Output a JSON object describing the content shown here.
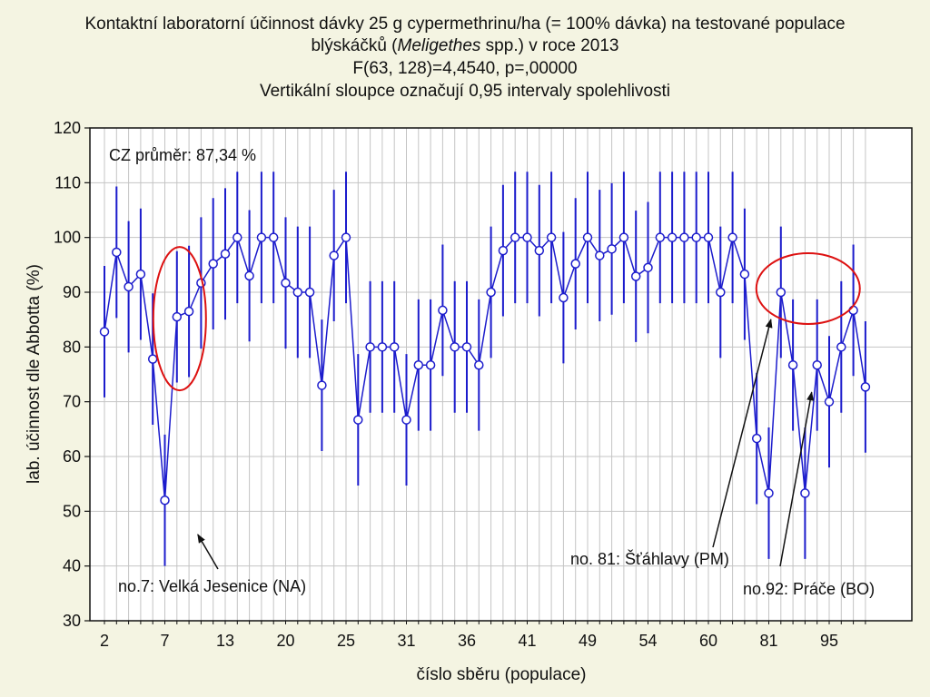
{
  "chart_data": {
    "type": "line",
    "title_lines": [
      "Kontaktní laboratorní účinnost dávky 25 g cypermethrinu/ha (= 100% dávka) na testované populace",
      "blýskáčků (",
      "Meligethes",
      " spp.) v roce 2013",
      "F(63, 128)=4,4540, p=,00000",
      "Vertikální sloupce označují 0,95 intervaly spolehlivosti"
    ],
    "xlabel": "číslo sběru (populace)",
    "ylabel": "lab. účinnost dle Abbotta (%)",
    "ylim": [
      30,
      120
    ],
    "yticks": [
      30,
      40,
      50,
      60,
      70,
      80,
      90,
      100,
      110,
      120
    ],
    "xtick_labels": [
      "2",
      "7",
      "13",
      "20",
      "25",
      "31",
      "36",
      "41",
      "49",
      "54",
      "60",
      "81",
      "95"
    ],
    "xtick_every": 5,
    "grid": true,
    "ci_halfwidth": 12,
    "series": [
      {
        "values": [
          82.8,
          97.3,
          91.0,
          93.3,
          77.8,
          52.0,
          85.5,
          86.5,
          91.7,
          95.2,
          97.0,
          100.0,
          93.0,
          100.0,
          100.0,
          91.7,
          90.0,
          90.0,
          73.0,
          96.7,
          100.0,
          66.7,
          80.0,
          80.0,
          80.0,
          66.7,
          76.7,
          76.7,
          86.7,
          80.0,
          80.0,
          76.7,
          90.0,
          97.6,
          100.0,
          100.0,
          97.6,
          100.0,
          89.0,
          95.2,
          100.0,
          96.7,
          97.9,
          100.0,
          92.9,
          94.5,
          100.0,
          100.0,
          100.0,
          100.0,
          100.0,
          90.0,
          100.0,
          93.3,
          63.3,
          53.3,
          90.0,
          76.7,
          53.3,
          76.7,
          70.0,
          80.0,
          86.7,
          72.7
        ]
      }
    ],
    "colors": {
      "series": "#1c1ccc",
      "highlight": "#dd1111",
      "grid": "#c4c4c4"
    },
    "annotations": [
      {
        "text": "CZ průměr: 87,34 %"
      },
      {
        "text": "no.7: Velká Jesenice (NA)",
        "point": 6
      },
      {
        "text": "no. 81: Šťáhlavy (PM)",
        "point": 56
      },
      {
        "text": "no.92: Práče (BO)",
        "point": 59
      }
    ]
  }
}
